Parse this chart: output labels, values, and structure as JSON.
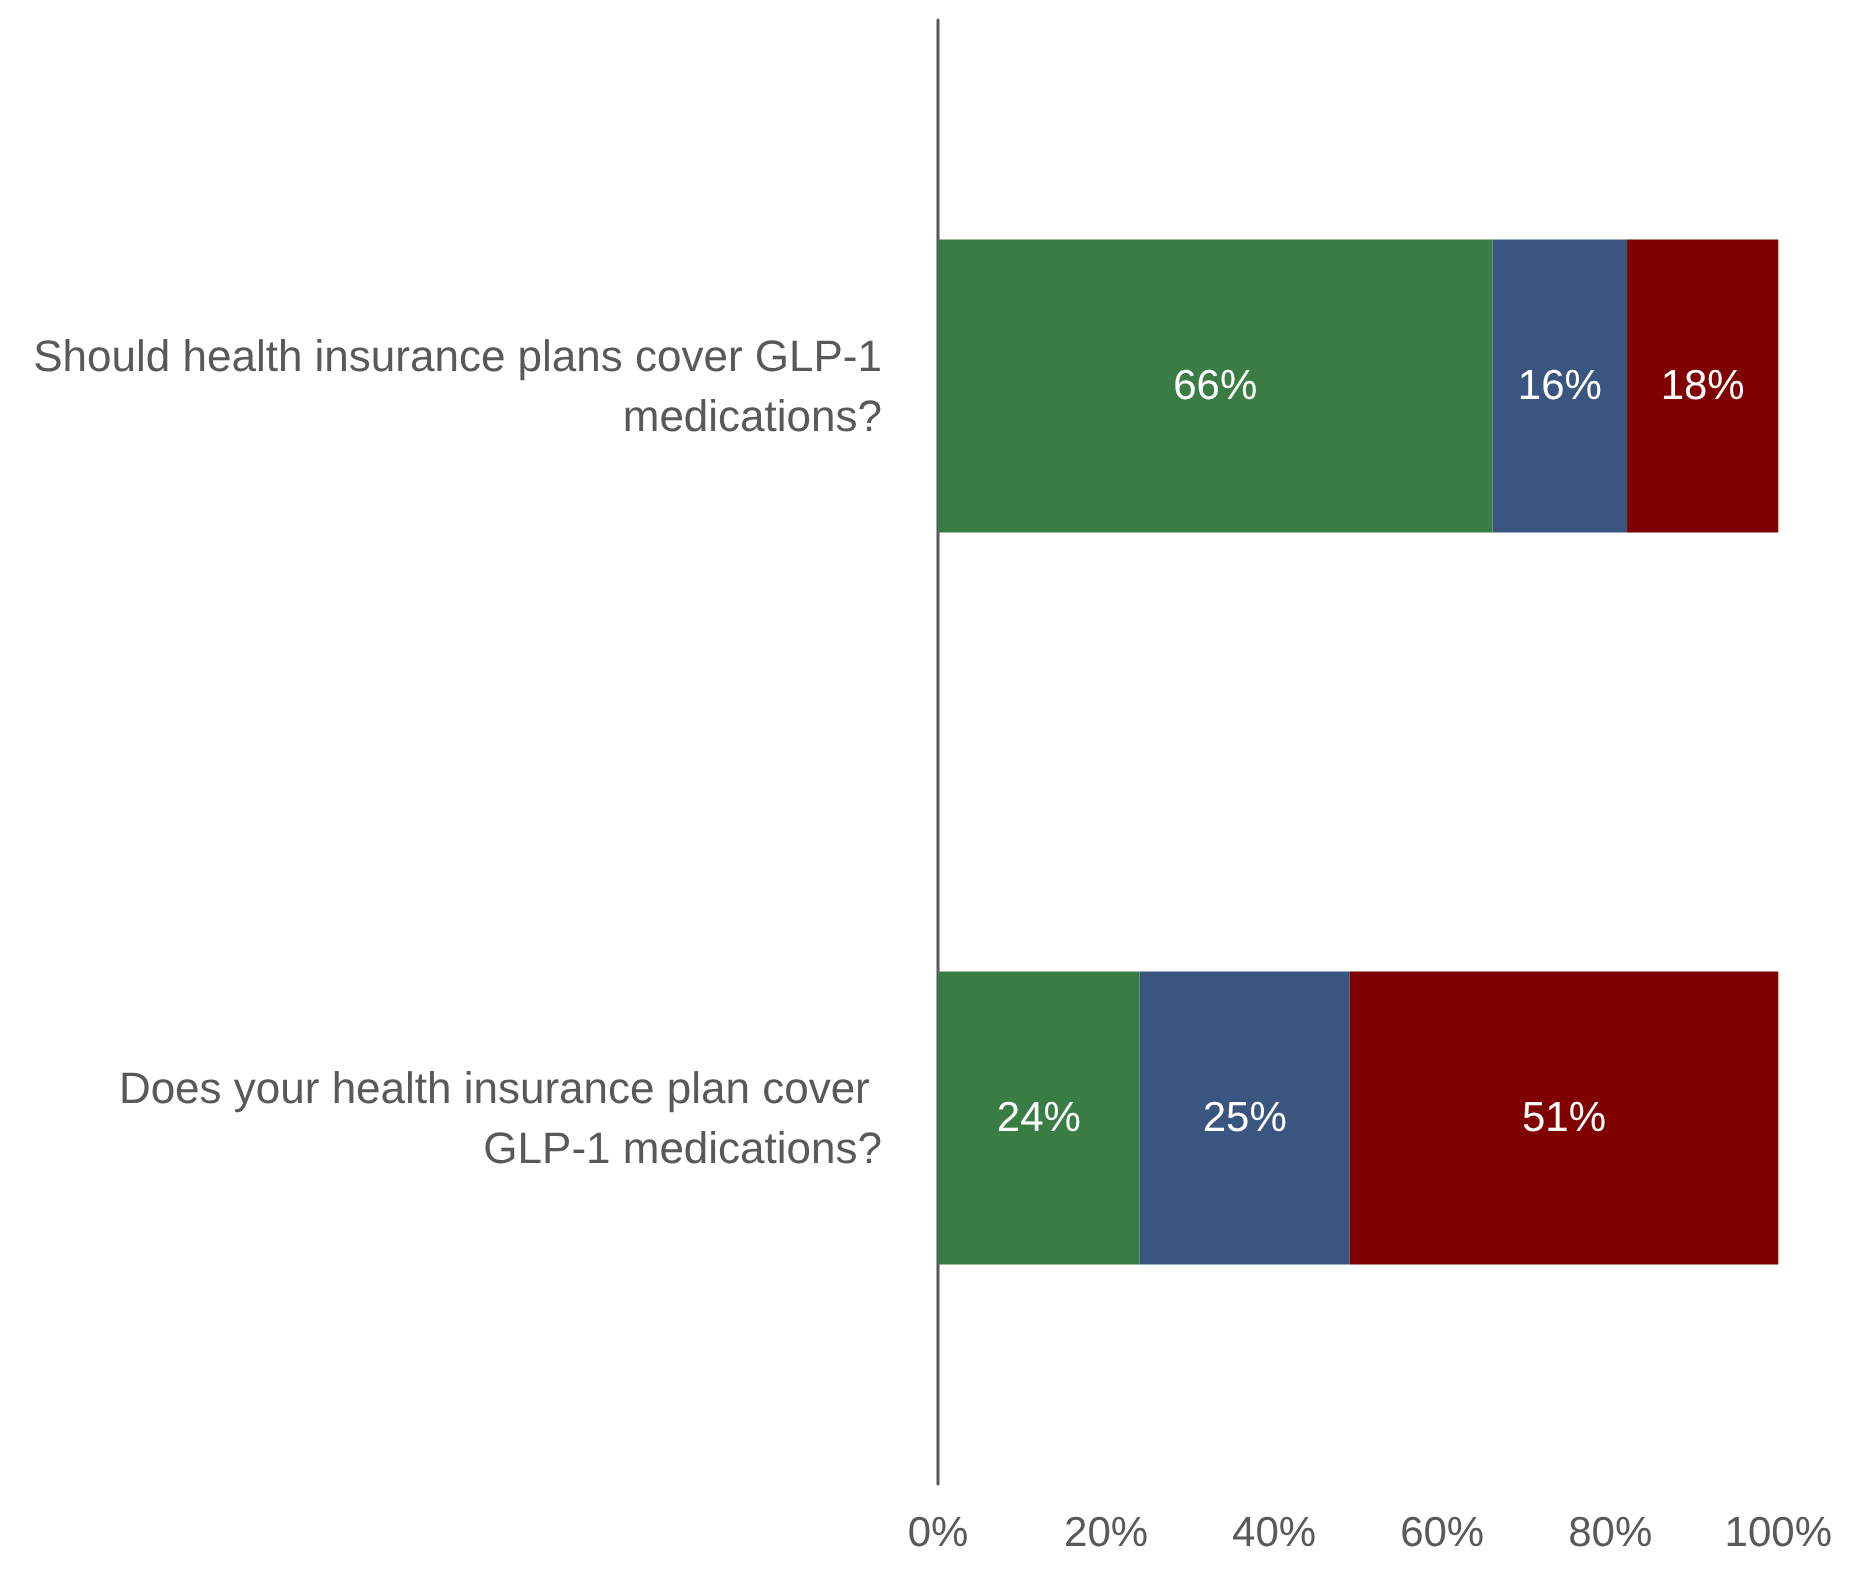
{
  "chart_data": {
    "type": "bar",
    "orientation": "horizontal",
    "stacked": true,
    "categories": [
      "Should health insurance plans cover GLP-1 medications?",
      "Does your health insurance plan cover GLP-1 medications?"
    ],
    "series": [
      {
        "color": "#3a7d44",
        "values": [
          66,
          24
        ],
        "value_labels": [
          "66%",
          "24%"
        ]
      },
      {
        "color": "#3a557f",
        "values": [
          16,
          25
        ],
        "value_labels": [
          "16%",
          "25%"
        ]
      },
      {
        "color": "#800000",
        "values": [
          18,
          51
        ],
        "value_labels": [
          "18%",
          "51%"
        ]
      }
    ],
    "xlim": [
      0,
      100
    ],
    "xticks": [
      {
        "value": 0,
        "label": "0%"
      },
      {
        "value": 20,
        "label": "20%"
      },
      {
        "value": 40,
        "label": "40%"
      },
      {
        "value": 60,
        "label": "60%"
      },
      {
        "value": 80,
        "label": "80%"
      },
      {
        "value": 100,
        "label": "100%"
      }
    ],
    "grid": false
  }
}
